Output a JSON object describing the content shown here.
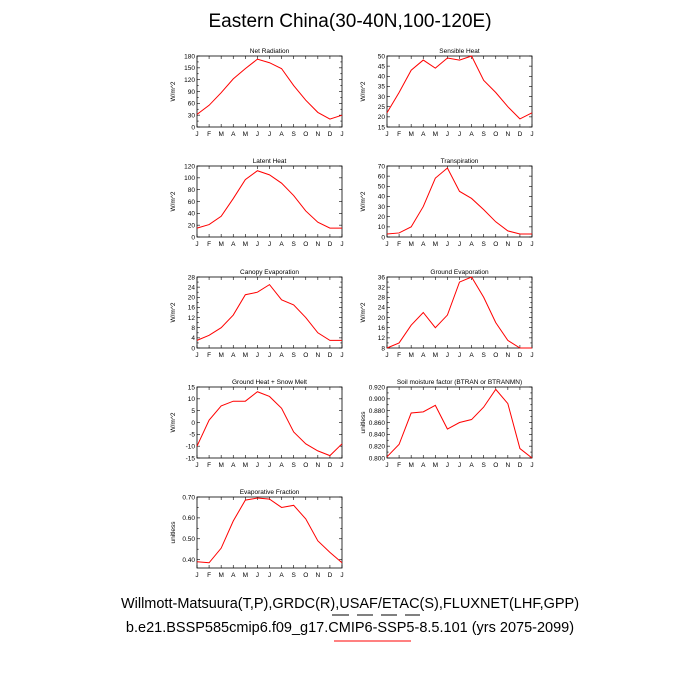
{
  "title": "Eastern China(30-40N,100-120E)",
  "caption_line1": "Willmott-Matsuura(T,P),GRDC(R),USAF/ETAC(S),FLUXNET(LHF,GPP)",
  "caption_line2": "b.e21.BSSP585cmip6.f09_g17.CMIP6-SSP5-8.5.101 (yrs 2075-2099)",
  "legend_line_colors": [
    "#000000",
    "#000000",
    "#000000",
    "#000000",
    "#ff0000"
  ],
  "line_color": "#ff0000",
  "chart_data": [
    {
      "type": "line",
      "title": "Net Radiation",
      "ylabel": "W/m^2",
      "categories": [
        "J",
        "F",
        "M",
        "A",
        "M",
        "J",
        "J",
        "A",
        "S",
        "O",
        "N",
        "D",
        "J"
      ],
      "values": [
        32,
        55,
        87,
        122,
        148,
        172,
        163,
        148,
        105,
        68,
        37,
        20,
        30
      ],
      "ylim": [
        0,
        180
      ],
      "yticks": [
        0,
        15,
        30,
        45,
        60,
        75,
        90,
        105,
        120,
        135,
        150,
        165,
        180
      ],
      "yticklabels": [
        "0",
        "",
        "30",
        "",
        "60",
        "",
        "90",
        "",
        "120",
        "",
        "150",
        "",
        "180"
      ]
    },
    {
      "type": "line",
      "title": "Sensible Heat",
      "ylabel": "W/m^2",
      "categories": [
        "J",
        "F",
        "M",
        "A",
        "M",
        "J",
        "J",
        "A",
        "S",
        "O",
        "N",
        "D",
        "J"
      ],
      "values": [
        22,
        32,
        43,
        48,
        44,
        49,
        48,
        50,
        38,
        32,
        25,
        19,
        22
      ],
      "ylim": [
        15,
        50
      ],
      "yticks": [
        15,
        20,
        25,
        30,
        35,
        40,
        45,
        50
      ],
      "yticklabels": [
        "15",
        "20",
        "25",
        "30",
        "35",
        "40",
        "45",
        "50"
      ]
    },
    {
      "type": "line",
      "title": "Latent Heat",
      "ylabel": "W/m^2",
      "categories": [
        "J",
        "F",
        "M",
        "A",
        "M",
        "J",
        "J",
        "A",
        "S",
        "O",
        "N",
        "D",
        "J"
      ],
      "values": [
        15,
        21,
        35,
        65,
        97,
        112,
        105,
        91,
        70,
        44,
        25,
        15,
        15
      ],
      "ylim": [
        0,
        120
      ],
      "yticks": [
        0,
        20,
        40,
        60,
        80,
        100,
        120
      ],
      "yticklabels": [
        "0",
        "20",
        "40",
        "60",
        "80",
        "100",
        "120"
      ]
    },
    {
      "type": "line",
      "title": "Transpiration",
      "ylabel": "W/m^2",
      "categories": [
        "J",
        "F",
        "M",
        "A",
        "M",
        "J",
        "J",
        "A",
        "S",
        "O",
        "N",
        "D",
        "J"
      ],
      "values": [
        3,
        4,
        10,
        30,
        58,
        68,
        45,
        38,
        27,
        15,
        6,
        3,
        3
      ],
      "ylim": [
        0,
        70
      ],
      "yticks": [
        0,
        10,
        20,
        30,
        40,
        50,
        60,
        70
      ],
      "yticklabels": [
        "0",
        "10",
        "20",
        "30",
        "40",
        "50",
        "60",
        "70"
      ]
    },
    {
      "type": "line",
      "title": "Canopy Evaporation",
      "ylabel": "W/m^2",
      "categories": [
        "J",
        "F",
        "M",
        "A",
        "M",
        "J",
        "J",
        "A",
        "S",
        "O",
        "N",
        "D",
        "J"
      ],
      "values": [
        3,
        5,
        8,
        13,
        21,
        22,
        25,
        19,
        17,
        12,
        6,
        3,
        3
      ],
      "ylim": [
        0,
        28
      ],
      "yticks": [
        0,
        2,
        4,
        6,
        8,
        10,
        12,
        14,
        16,
        18,
        20,
        22,
        24,
        26,
        28
      ],
      "yticklabels": [
        "0",
        "",
        "4",
        "",
        "8",
        "",
        "12",
        "",
        "16",
        "",
        "20",
        "",
        "24",
        "",
        "28"
      ]
    },
    {
      "type": "line",
      "title": "Ground Evaporation",
      "ylabel": "W/m^2",
      "categories": [
        "J",
        "F",
        "M",
        "A",
        "M",
        "J",
        "J",
        "A",
        "S",
        "O",
        "N",
        "D",
        "J"
      ],
      "values": [
        8,
        10,
        17,
        22,
        16,
        21,
        34,
        36,
        28,
        18,
        11,
        8,
        8
      ],
      "ylim": [
        8,
        36
      ],
      "yticks": [
        8,
        10,
        12,
        14,
        16,
        18,
        20,
        22,
        24,
        26,
        28,
        30,
        32,
        34,
        36
      ],
      "yticklabels": [
        "8",
        "",
        "12",
        "",
        "16",
        "",
        "20",
        "",
        "24",
        "",
        "28",
        "",
        "32",
        "",
        "36"
      ]
    },
    {
      "type": "line",
      "title": "Ground Heat + Snow Melt",
      "ylabel": "W/m^2",
      "categories": [
        "J",
        "F",
        "M",
        "A",
        "M",
        "J",
        "J",
        "A",
        "S",
        "O",
        "N",
        "D",
        "J"
      ],
      "values": [
        -10,
        1,
        7,
        9,
        9,
        13,
        11,
        6,
        -4,
        -9,
        -12,
        -14,
        -9
      ],
      "ylim": [
        -15,
        15
      ],
      "yticks": [
        -15,
        -10,
        -5,
        0,
        5,
        10,
        15
      ],
      "yticklabels": [
        "-15",
        "-10",
        "-5",
        "0",
        "5",
        "10",
        "15"
      ]
    },
    {
      "type": "line",
      "title": "Soil moisture factor (BTRAN or BTRANMN)",
      "ylabel": "unitless",
      "categories": [
        "J",
        "F",
        "M",
        "A",
        "M",
        "J",
        "J",
        "A",
        "S",
        "O",
        "N",
        "D",
        "J"
      ],
      "values": [
        0.802,
        0.823,
        0.876,
        0.878,
        0.889,
        0.849,
        0.86,
        0.865,
        0.886,
        0.916,
        0.892,
        0.816,
        0.8
      ],
      "ylim": [
        0.8,
        0.92
      ],
      "yticks": [
        0.8,
        0.81,
        0.82,
        0.83,
        0.84,
        0.85,
        0.86,
        0.87,
        0.88,
        0.89,
        0.9,
        0.91,
        0.92
      ],
      "yticklabels": [
        "0.800",
        "",
        "0.820",
        "",
        "0.840",
        "",
        "0.860",
        "",
        "0.880",
        "",
        "0.900",
        "",
        "0.920"
      ]
    },
    {
      "type": "line",
      "title": "Evaporative Fraction",
      "ylabel": "unitless",
      "categories": [
        "J",
        "F",
        "M",
        "A",
        "M",
        "J",
        "J",
        "A",
        "S",
        "O",
        "N",
        "D",
        "J"
      ],
      "values": [
        0.39,
        0.385,
        0.455,
        0.585,
        0.685,
        0.695,
        0.69,
        0.65,
        0.66,
        0.595,
        0.49,
        0.435,
        0.385
      ],
      "ylim": [
        0.36,
        0.7
      ],
      "yticks": [
        0.35,
        0.4,
        0.45,
        0.5,
        0.55,
        0.6,
        0.65,
        0.7
      ],
      "yticklabels": [
        "",
        "0.40",
        "",
        "0.50",
        "",
        "0.60",
        "",
        "0.70"
      ]
    }
  ]
}
